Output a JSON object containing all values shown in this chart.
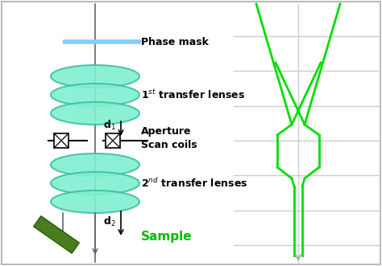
{
  "fig_width": 4.74,
  "fig_height": 3.31,
  "dpi": 100,
  "bg_color": "#ffffff",
  "border_color": "#bbbbbb",
  "lens_color": "#80f0d0",
  "lens_edge_color": "#40c0a0",
  "phase_mask_color": "#88ccff",
  "sample_color": "#4a7c20",
  "beam_color": "#00dd00",
  "axis_color": "#666666",
  "text_color": "#000000",
  "sample_label_color": "#00bb00",
  "grid_color": "#cccccc",
  "labels": {
    "phase_mask": "Phase mask",
    "transfer1": "1$^{st}$ transfer lenses",
    "aperture": "Aperture\nScan coils",
    "transfer2": "2$^{nd}$ transfer lenses",
    "sample": "Sample",
    "d1": "d$_1$",
    "d2": "d$_2$"
  }
}
